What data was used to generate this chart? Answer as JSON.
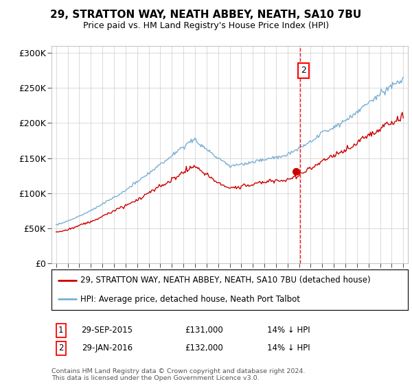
{
  "title": "29, STRATTON WAY, NEATH ABBEY, NEATH, SA10 7BU",
  "subtitle": "Price paid vs. HM Land Registry's House Price Index (HPI)",
  "legend_line1": "29, STRATTON WAY, NEATH ABBEY, NEATH, SA10 7BU (detached house)",
  "legend_line2": "HPI: Average price, detached house, Neath Port Talbot",
  "annotation1_label": "1",
  "annotation1_date": "29-SEP-2015",
  "annotation1_price": "£131,000",
  "annotation1_hpi": "14% ↓ HPI",
  "annotation2_label": "2",
  "annotation2_date": "29-JAN-2016",
  "annotation2_price": "£132,000",
  "annotation2_hpi": "14% ↓ HPI",
  "footer": "Contains HM Land Registry data © Crown copyright and database right 2024.\nThis data is licensed under the Open Government Licence v3.0.",
  "sale1_year": 2015.75,
  "sale1_value": 131000,
  "sale2_year": 2016.08,
  "sale2_value": 132000,
  "red_line_color": "#cc0000",
  "blue_line_color": "#7aafd4",
  "background_color": "#ffffff",
  "grid_color": "#cccccc",
  "ylim_min": 0,
  "ylim_max": 310000,
  "yticks": [
    0,
    50000,
    100000,
    150000,
    200000,
    250000,
    300000
  ],
  "ytick_labels": [
    "£0",
    "£50K",
    "£100K",
    "£150K",
    "£200K",
    "£250K",
    "£300K"
  ],
  "xlim_min": 1994.6,
  "xlim_max": 2025.4
}
